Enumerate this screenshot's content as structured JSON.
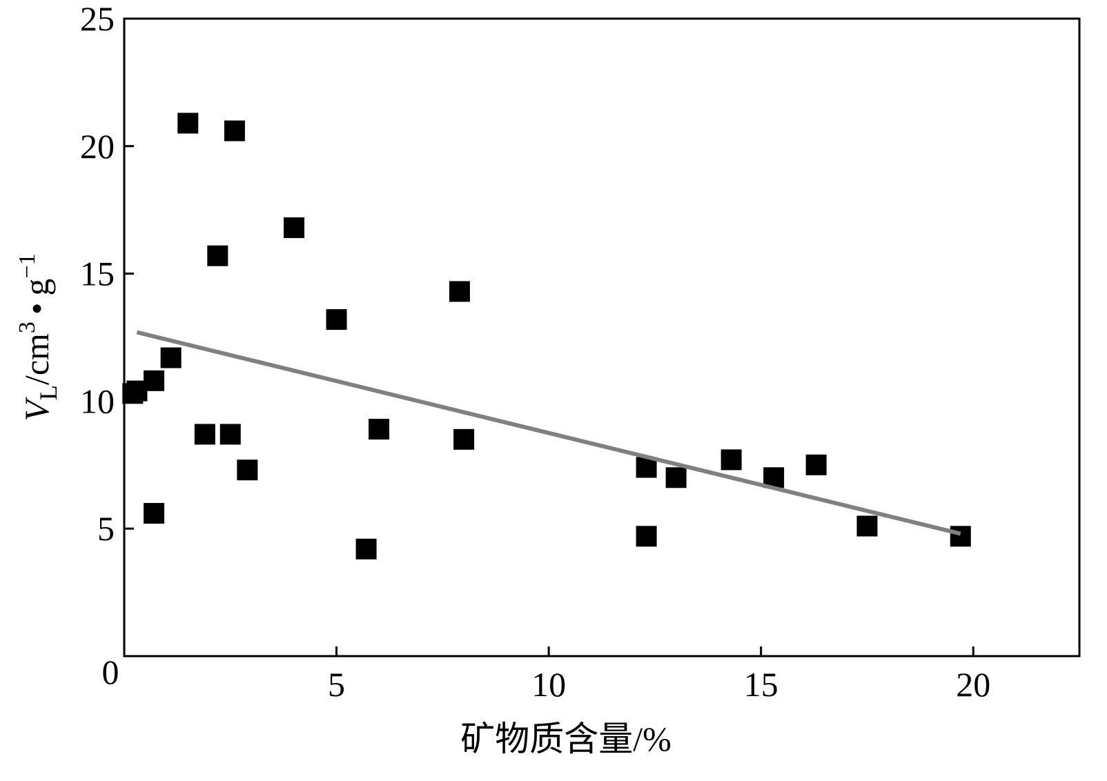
{
  "chart_data": {
    "type": "scatter",
    "xlabel": "矿物质含量/%",
    "ylabel": {
      "var": "V",
      "var_sub": "L",
      "unit_a": "/cm",
      "unit_a_sup": "3",
      "dot": "•",
      "unit_b": "g",
      "unit_b_sup": "−1"
    },
    "xlim": [
      0,
      22.5
    ],
    "ylim": [
      0,
      25
    ],
    "xticks": [
      0,
      5,
      10,
      15,
      20
    ],
    "xtick_labels": [
      "0",
      "5",
      "10",
      "15",
      "20"
    ],
    "yticks": [
      5,
      10,
      15,
      20,
      25
    ],
    "ytick_labels": [
      "5",
      "10",
      "15",
      "20",
      "25"
    ],
    "grid": false,
    "legend": "none",
    "points": [
      {
        "x": 0.2,
        "y": 10.3
      },
      {
        "x": 0.3,
        "y": 10.4
      },
      {
        "x": 0.7,
        "y": 10.8
      },
      {
        "x": 0.7,
        "y": 5.6
      },
      {
        "x": 1.1,
        "y": 11.7
      },
      {
        "x": 1.5,
        "y": 20.9
      },
      {
        "x": 1.9,
        "y": 8.7
      },
      {
        "x": 2.2,
        "y": 15.7
      },
      {
        "x": 2.5,
        "y": 8.7
      },
      {
        "x": 2.6,
        "y": 20.6
      },
      {
        "x": 2.9,
        "y": 7.3
      },
      {
        "x": 4.0,
        "y": 16.8
      },
      {
        "x": 5.0,
        "y": 13.2
      },
      {
        "x": 5.7,
        "y": 4.2
      },
      {
        "x": 6.0,
        "y": 8.9
      },
      {
        "x": 7.9,
        "y": 14.3
      },
      {
        "x": 8.0,
        "y": 8.5
      },
      {
        "x": 12.3,
        "y": 7.4
      },
      {
        "x": 12.3,
        "y": 4.7
      },
      {
        "x": 13.0,
        "y": 7.0
      },
      {
        "x": 14.3,
        "y": 7.7
      },
      {
        "x": 15.3,
        "y": 7.0
      },
      {
        "x": 16.3,
        "y": 7.5
      },
      {
        "x": 17.5,
        "y": 5.1
      },
      {
        "x": 19.7,
        "y": 4.7
      }
    ],
    "trendline": {
      "x": [
        0.3,
        19.7
      ],
      "y": [
        12.7,
        4.8
      ]
    },
    "colors": {
      "points": "#000000",
      "trendline": "#808080",
      "axes": "#000000"
    }
  }
}
